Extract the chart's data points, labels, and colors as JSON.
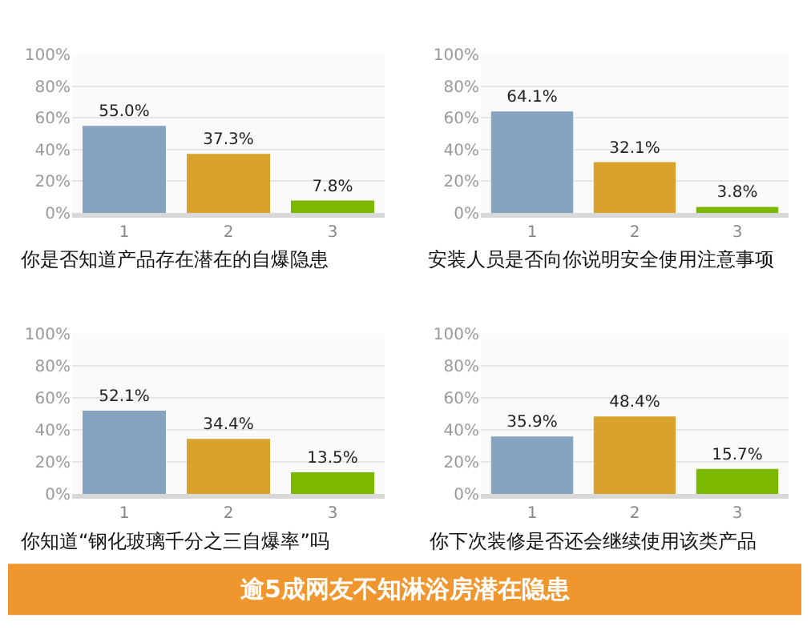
{
  "chart_data": [
    {
      "type": "bar",
      "xlabel": "你是否知道产品存在潜在的自爆隐患",
      "categories": [
        "1",
        "2",
        "3"
      ],
      "values": [
        55.0,
        37.3,
        7.8
      ],
      "colors": [
        "#86a3c0",
        "#d9a22c",
        "#7cb800"
      ],
      "value_labels": [
        "55.0%",
        "37.3%",
        "7.8%"
      ],
      "ylim": [
        0,
        100
      ],
      "yticks": [
        {
          "value": 0,
          "label": "0%"
        },
        {
          "value": 20,
          "label": "20%"
        },
        {
          "value": 40,
          "label": "40%"
        },
        {
          "value": 60,
          "label": "60%"
        },
        {
          "value": 80,
          "label": "80%"
        },
        {
          "value": 100,
          "label": "100%"
        }
      ],
      "grid": "y"
    },
    {
      "type": "bar",
      "xlabel": "安装人员是否向你说明安全使用注意事项",
      "categories": [
        "1",
        "2",
        "3"
      ],
      "values": [
        64.1,
        32.1,
        3.8
      ],
      "colors": [
        "#86a3c0",
        "#d9a22c",
        "#7cb800"
      ],
      "value_labels": [
        "64.1%",
        "32.1%",
        "3.8%"
      ],
      "ylim": [
        0,
        100
      ],
      "yticks": [
        {
          "value": 0,
          "label": "0%"
        },
        {
          "value": 20,
          "label": "20%"
        },
        {
          "value": 40,
          "label": "40%"
        },
        {
          "value": 60,
          "label": "60%"
        },
        {
          "value": 80,
          "label": "80%"
        },
        {
          "value": 100,
          "label": "100%"
        }
      ],
      "grid": "y"
    },
    {
      "type": "bar",
      "xlabel": "你知道“钢化玻璃千分之三自爆率”吗",
      "categories": [
        "1",
        "2",
        "3"
      ],
      "values": [
        52.1,
        34.4,
        13.5
      ],
      "colors": [
        "#86a3c0",
        "#d9a22c",
        "#7cb800"
      ],
      "value_labels": [
        "52.1%",
        "34.4%",
        "13.5%"
      ],
      "ylim": [
        0,
        100
      ],
      "yticks": [
        {
          "value": 0,
          "label": "0%"
        },
        {
          "value": 20,
          "label": "20%"
        },
        {
          "value": 40,
          "label": "40%"
        },
        {
          "value": 60,
          "label": "60%"
        },
        {
          "value": 80,
          "label": "80%"
        },
        {
          "value": 100,
          "label": "100%"
        }
      ],
      "grid": "y"
    },
    {
      "type": "bar",
      "xlabel": "你下次装修是否还会继续使用该类产品",
      "categories": [
        "1",
        "2",
        "3"
      ],
      "values": [
        35.9,
        48.4,
        15.7
      ],
      "colors": [
        "#86a3c0",
        "#d9a22c",
        "#7cb800"
      ],
      "value_labels": [
        "35.9%",
        "48.4%",
        "15.7%"
      ],
      "ylim": [
        0,
        100
      ],
      "yticks": [
        {
          "value": 0,
          "label": "0%"
        },
        {
          "value": 20,
          "label": "20%"
        },
        {
          "value": 40,
          "label": "40%"
        },
        {
          "value": 60,
          "label": "60%"
        },
        {
          "value": 80,
          "label": "80%"
        },
        {
          "value": 100,
          "label": "100%"
        }
      ],
      "grid": "y"
    },
    {
      "type": "other",
      "title": "逾5成网友不知淋浴房潜在隐患"
    }
  ]
}
